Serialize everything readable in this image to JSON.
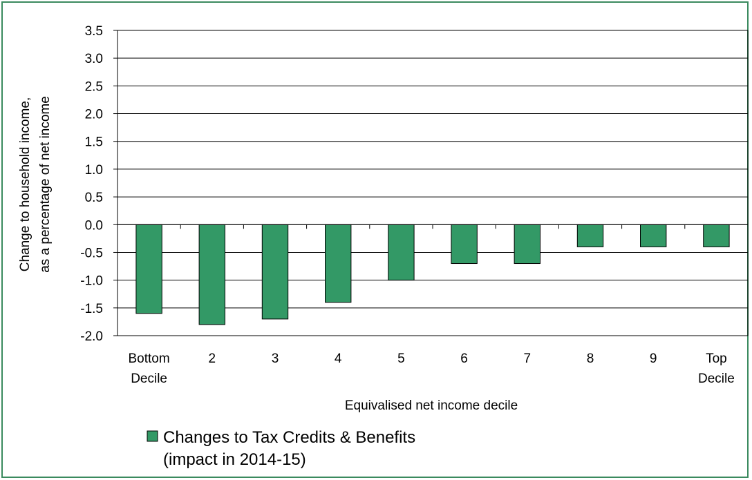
{
  "chart_data": {
    "type": "bar",
    "categories": [
      [
        "Bottom",
        "Decile"
      ],
      [
        "2"
      ],
      [
        "3"
      ],
      [
        "4"
      ],
      [
        "5"
      ],
      [
        "6"
      ],
      [
        "7"
      ],
      [
        "8"
      ],
      [
        "9"
      ],
      [
        "Top",
        "Decile"
      ]
    ],
    "series": [
      {
        "name_lines": [
          "Changes to Tax Credits & Benefits",
          "(impact in 2014-15)"
        ],
        "values": [
          -1.6,
          -1.8,
          -1.7,
          -1.4,
          -1.0,
          -0.7,
          -0.7,
          -0.4,
          -0.4,
          -0.4
        ],
        "color": "#339966"
      }
    ],
    "xlabel": "Equivalised net income decile",
    "ylabel_lines": [
      "Change to household income,",
      "as a percentage of net income"
    ],
    "ylim": [
      -2.0,
      3.5
    ],
    "yticks": [
      3.5,
      3.0,
      2.5,
      2.0,
      1.5,
      1.0,
      0.5,
      0.0,
      -0.5,
      -1.0,
      -1.5,
      -2.0
    ],
    "ytick_labels": [
      "3.5",
      "3.0",
      "2.5",
      "2.0",
      "1.5",
      "1.0",
      "0.5",
      "0.0",
      "-0.5",
      "-1.0",
      "-1.5",
      "-2.0"
    ],
    "grid": true,
    "legend_position": "bottom-left"
  }
}
